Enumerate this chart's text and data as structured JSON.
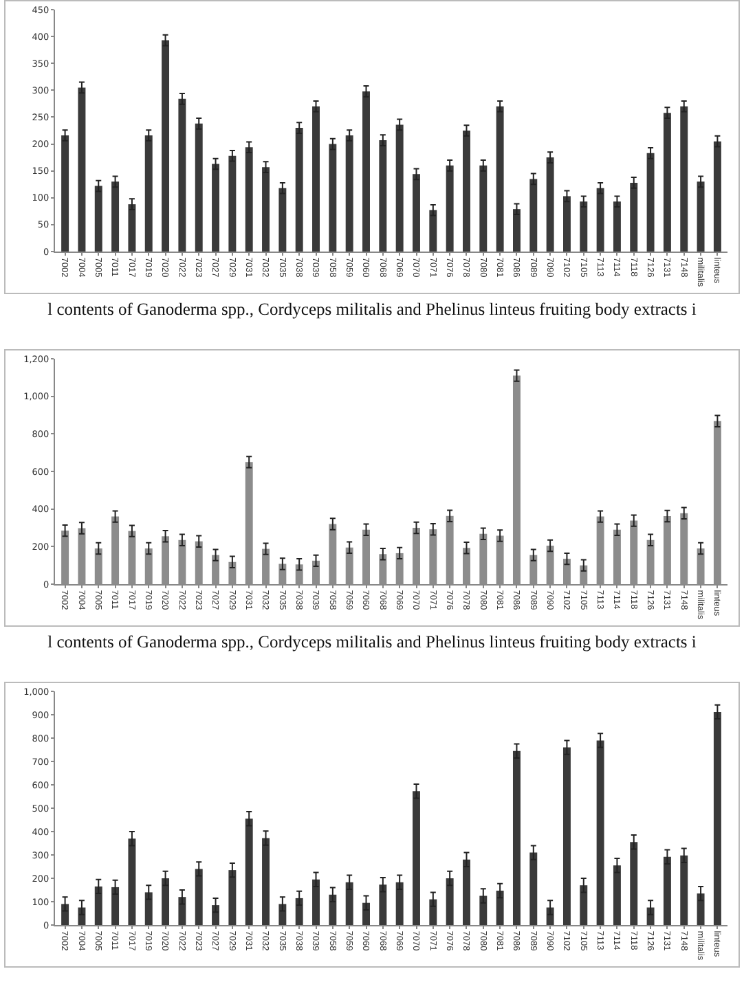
{
  "chart_data": [
    {
      "type": "bar",
      "categories": [
        "7002",
        "7004",
        "7005",
        "7011",
        "7017",
        "7019",
        "7020",
        "7022",
        "7023",
        "7027",
        "7029",
        "7031",
        "7032",
        "7035",
        "7038",
        "7039",
        "7058",
        "7059",
        "7060",
        "7068",
        "7069",
        "7070",
        "7071",
        "7076",
        "7078",
        "7080",
        "7081",
        "7086",
        "7089",
        "7090",
        "7102",
        "7105",
        "7113",
        "7114",
        "7118",
        "7126",
        "7131",
        "7148",
        "militalis",
        "linteus"
      ],
      "values": [
        216,
        305,
        122,
        130,
        88,
        216,
        393,
        284,
        238,
        163,
        178,
        194,
        157,
        118,
        230,
        270,
        200,
        216,
        298,
        207,
        236,
        144,
        77,
        160,
        225,
        160,
        270,
        79,
        135,
        175,
        103,
        93,
        118,
        93,
        128,
        183,
        258,
        270,
        130,
        205
      ],
      "errors": [
        10,
        10,
        10,
        10,
        10,
        10,
        10,
        10,
        10,
        10,
        10,
        10,
        10,
        10,
        10,
        10,
        10,
        10,
        10,
        10,
        10,
        10,
        10,
        10,
        10,
        10,
        10,
        10,
        10,
        10,
        10,
        10,
        10,
        10,
        10,
        10,
        10,
        10,
        10,
        10
      ],
      "color": "#3a3a3a",
      "ylim": [
        0,
        450
      ],
      "yticks": [
        0,
        50,
        100,
        150,
        200,
        250,
        300,
        350,
        400,
        450
      ],
      "grid": false,
      "annotations": [
        "l contents of Ganoderma spp., Cordyceps militalis and Phelinus linteus fruiting body extracts i"
      ]
    },
    {
      "type": "bar",
      "categories": [
        "7002",
        "7004",
        "7005",
        "7011",
        "7017",
        "7019",
        "7020",
        "7022",
        "7023",
        "7027",
        "7029",
        "7031",
        "7032",
        "7035",
        "7038",
        "7039",
        "7058",
        "7059",
        "7060",
        "7068",
        "7069",
        "7070",
        "7071",
        "7076",
        "7078",
        "7080",
        "7081",
        "7086",
        "7089",
        "7090",
        "7102",
        "7105",
        "7113",
        "7114",
        "7118",
        "7126",
        "7131",
        "7148",
        "militalis",
        "linteus"
      ],
      "values": [
        285,
        298,
        190,
        360,
        283,
        190,
        255,
        235,
        228,
        155,
        118,
        650,
        188,
        108,
        105,
        125,
        320,
        195,
        290,
        160,
        165,
        300,
        292,
        363,
        193,
        268,
        258,
        1110,
        155,
        205,
        135,
        100,
        360,
        290,
        338,
        235,
        362,
        378,
        190,
        868
      ],
      "errors": [
        30,
        30,
        30,
        30,
        30,
        30,
        30,
        30,
        30,
        30,
        30,
        30,
        30,
        30,
        30,
        30,
        30,
        30,
        30,
        30,
        30,
        30,
        30,
        30,
        30,
        30,
        30,
        30,
        30,
        30,
        30,
        30,
        30,
        30,
        30,
        30,
        30,
        30,
        30,
        30
      ],
      "color": "#8c8c8c",
      "ylim": [
        0,
        1200
      ],
      "yticks": [
        0,
        {
          "value": 200,
          "label": "200"
        },
        {
          "value": 400,
          "label": "400"
        },
        {
          "value": 600,
          "label": "600"
        },
        {
          "value": 800,
          "label": "800"
        },
        {
          "value": 1000,
          "label": "1,000"
        },
        {
          "value": 1200,
          "label": "1,200"
        }
      ],
      "grid": false,
      "annotations": [
        "l contents of Ganoderma spp., Cordyceps militalis and Phelinus linteus fruiting body extracts i"
      ]
    },
    {
      "type": "bar",
      "categories": [
        "7002",
        "7004",
        "7005",
        "7011",
        "7017",
        "7019",
        "7020",
        "7022",
        "7023",
        "7027",
        "7029",
        "7031",
        "7032",
        "7035",
        "7038",
        "7039",
        "7058",
        "7059",
        "7060",
        "7068",
        "7069",
        "7070",
        "7071",
        "7076",
        "7078",
        "7080",
        "7081",
        "7086",
        "7089",
        "7090",
        "7102",
        "7105",
        "7113",
        "7114",
        "7118",
        "7126",
        "7131",
        "7148",
        "militalis",
        "linteus"
      ],
      "values": [
        90,
        75,
        165,
        162,
        370,
        140,
        200,
        120,
        240,
        85,
        235,
        455,
        372,
        90,
        115,
        195,
        130,
        183,
        95,
        173,
        183,
        573,
        110,
        200,
        280,
        125,
        147,
        745,
        310,
        75,
        760,
        170,
        790,
        255,
        355,
        75,
        292,
        298,
        135,
        912
      ],
      "errors": [
        30,
        30,
        30,
        30,
        30,
        30,
        30,
        30,
        30,
        30,
        30,
        30,
        30,
        30,
        30,
        30,
        30,
        30,
        30,
        30,
        30,
        30,
        30,
        30,
        30,
        30,
        30,
        30,
        30,
        30,
        30,
        30,
        30,
        30,
        30,
        30,
        30,
        30,
        30,
        30
      ],
      "color": "#3a3a3a",
      "ylim": [
        0,
        1000
      ],
      "yticks": [
        0,
        100,
        200,
        300,
        400,
        500,
        600,
        700,
        800,
        900,
        {
          "value": 1000,
          "label": "1,000"
        }
      ],
      "grid": false
    }
  ]
}
